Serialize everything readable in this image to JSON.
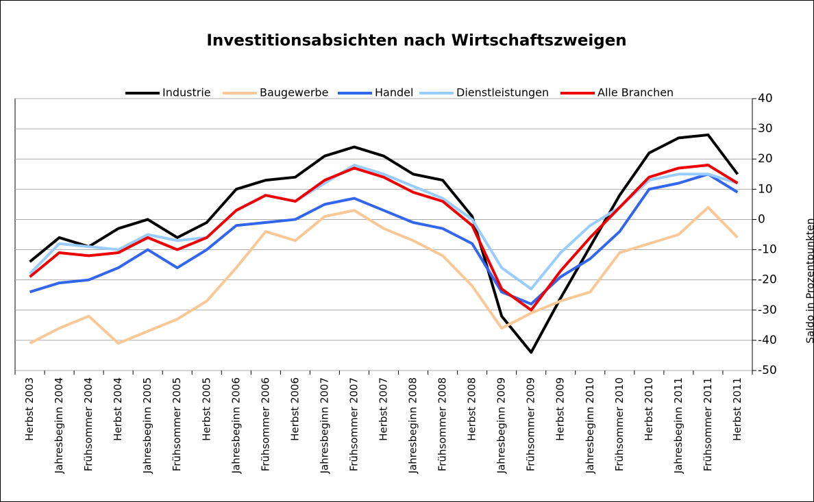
{
  "chart_data": {
    "type": "line",
    "title": "Investitionsabsichten nach Wirtschaftszweigen",
    "y_axis_label": "Saldo in Prozentpunkten",
    "categories": [
      "Herbst 2003",
      "Jahresbeginn 2004",
      "Frühsommer 2004",
      "Herbst 2004",
      "Jahresbeginn 2005",
      "Frühsommer 2005",
      "Herbst 2005",
      "Jahresbeginn 2006",
      "Frühsommer 2006",
      "Herbst 2006",
      "Jahresbeginn 2007",
      "Frühsommer 2007",
      "Herbst 2007",
      "Jahresbeginn 2008",
      "Frühsommer 2008",
      "Herbst 2008",
      "Jahresbeginn 2009",
      "Frühsommer 2009",
      "Herbst 2009",
      "Jahresbeginn 2010",
      "Frühsommer 2010",
      "Herbst 2010",
      "Jahresbeginn 2011",
      "Frühsommer 2011",
      "Herbst 2011"
    ],
    "series": [
      {
        "name": "Industrie",
        "color": "#000000",
        "values": [
          -14,
          -6,
          -9,
          -3,
          0,
          -6,
          -1,
          10,
          13,
          14,
          21,
          24,
          21,
          15,
          13,
          1,
          -32,
          -44,
          -26,
          -9,
          8,
          22,
          27,
          28,
          15
        ]
      },
      {
        "name": "Baugewerbe",
        "color": "#fac896",
        "values": [
          -41,
          -36,
          -32,
          -41,
          -37,
          -33,
          -27,
          -16,
          -4,
          -7,
          1,
          3,
          -3,
          -7,
          -12,
          -22,
          -36,
          -31,
          -27,
          -24,
          -11,
          -8,
          -5,
          4,
          -6
        ]
      },
      {
        "name": "Handel",
        "color": "#3366ee",
        "values": [
          -24,
          -21,
          -20,
          -16,
          -10,
          -16,
          -10,
          -2,
          -1,
          0,
          5,
          7,
          3,
          -1,
          -3,
          -8,
          -24,
          -28,
          -19,
          -13,
          -4,
          10,
          12,
          15,
          9
        ]
      },
      {
        "name": "Dienstleistungen",
        "color": "#99ccff",
        "values": [
          -18,
          -8,
          -9,
          -10,
          -5,
          -7,
          -6,
          3,
          8,
          6,
          12,
          18,
          15,
          11,
          7,
          0,
          -16,
          -23,
          -11,
          -2,
          4,
          13,
          15,
          15,
          12
        ]
      },
      {
        "name": "Alle Branchen",
        "color": "#ee0000",
        "values": [
          -19,
          -11,
          -12,
          -11,
          -6,
          -10,
          -6,
          3,
          8,
          6,
          13,
          17,
          14,
          9,
          6,
          -2,
          -23,
          -30,
          -17,
          -6,
          4,
          14,
          17,
          18,
          12
        ]
      }
    ],
    "ylim": [
      -50,
      40
    ],
    "yticks": [
      -50,
      -40,
      -30,
      -20,
      -10,
      0,
      10,
      20,
      30,
      40
    ],
    "grid": true,
    "legend": "top"
  }
}
